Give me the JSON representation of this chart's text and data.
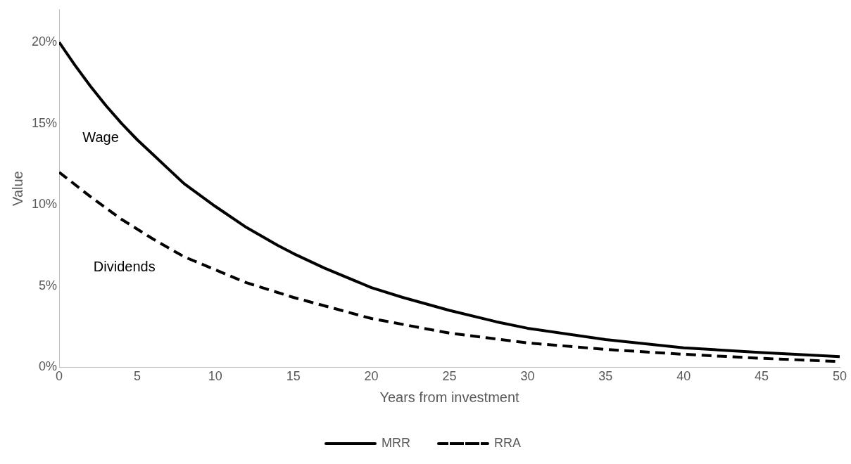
{
  "chart_data": {
    "type": "line",
    "xlabel": "Years from investment",
    "ylabel": "Value",
    "xlim": [
      0,
      50
    ],
    "xticks": [
      0,
      5,
      10,
      15,
      20,
      25,
      30,
      35,
      40,
      45,
      50
    ],
    "ylim": [
      0,
      22
    ],
    "yticks": [
      {
        "value": 0,
        "label": "0%"
      },
      {
        "value": 5,
        "label": "5%"
      },
      {
        "value": 10,
        "label": "10%"
      },
      {
        "value": 15,
        "label": "15%"
      },
      {
        "value": 20,
        "label": "20%"
      }
    ],
    "grid": false,
    "legend": "bottom",
    "marker": "none",
    "series": [
      {
        "name": "MRR",
        "color": "#000000",
        "line_style": "solid",
        "x": [
          0,
          1,
          2,
          3,
          4,
          5,
          6,
          7,
          8,
          9,
          10,
          12,
          14,
          15,
          17,
          20,
          22,
          25,
          28,
          30,
          35,
          40,
          45,
          50
        ],
        "values": [
          20,
          18.6,
          17.3,
          16.1,
          15.0,
          14.0,
          13.1,
          12.2,
          11.3,
          10.6,
          9.9,
          8.6,
          7.5,
          7.0,
          6.1,
          4.9,
          4.3,
          3.5,
          2.8,
          2.4,
          1.7,
          1.2,
          0.9,
          0.65
        ]
      },
      {
        "name": "RRA",
        "color": "#000000",
        "line_style": "dashed",
        "x": [
          0,
          2,
          4,
          6,
          8,
          10,
          12,
          15,
          20,
          25,
          30,
          35,
          40,
          45,
          50
        ],
        "values": [
          12,
          10.5,
          9.1,
          7.9,
          6.8,
          6.0,
          5.2,
          4.3,
          3.0,
          2.1,
          1.5,
          1.1,
          0.8,
          0.55,
          0.35
        ]
      }
    ],
    "annotations": [
      "Wage",
      "Dividends"
    ]
  }
}
